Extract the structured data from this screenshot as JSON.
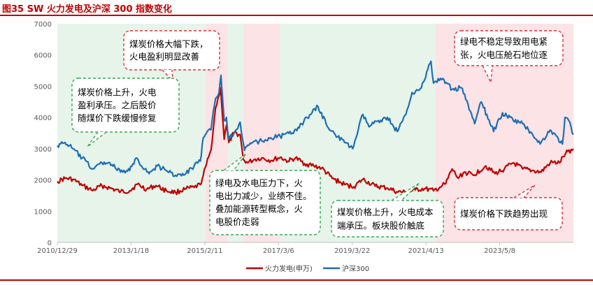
{
  "title": "图35  SW 火力发电及沪深 300 指数变化",
  "colors": {
    "title": "#c00000",
    "thermal": "#c00000",
    "csi300": "#1f6eb4",
    "green_band": "#e6f4ea",
    "pink_band": "#fbe3e6",
    "green_box": "#3aa655",
    "red_box": "#e0303a"
  },
  "chart_data": {
    "type": "line",
    "title": "",
    "xlabel": "",
    "ylabel": "",
    "ylim": [
      0,
      7000
    ],
    "yticks": [
      "0",
      "1000",
      "2000",
      "3000",
      "4000",
      "5000",
      "6000",
      "7000"
    ],
    "xticks": [
      "2010/12/29",
      "2013/1/18",
      "2015/2/11",
      "2017/3/6",
      "2019/3/22",
      "2021/4/13",
      "2023/5/8"
    ],
    "xrange": [
      "2010-12-29",
      "2024-12-31"
    ],
    "grid": false,
    "legend_position": "bottom",
    "series": [
      {
        "name": "火力发电(申万)",
        "color": "#c00000",
        "points": [
          [
            "2010-12-29",
            1950
          ],
          [
            "2011-03-15",
            2050
          ],
          [
            "2011-06-01",
            2020
          ],
          [
            "2011-09-01",
            1820
          ],
          [
            "2011-12-15",
            1660
          ],
          [
            "2012-03-15",
            1820
          ],
          [
            "2012-06-01",
            1740
          ],
          [
            "2012-09-15",
            1620
          ],
          [
            "2012-12-15",
            1650
          ],
          [
            "2013-03-01",
            1860
          ],
          [
            "2013-06-01",
            1700
          ],
          [
            "2013-09-01",
            1820
          ],
          [
            "2013-12-15",
            1650
          ],
          [
            "2014-03-15",
            1600
          ],
          [
            "2014-06-15",
            1700
          ],
          [
            "2014-09-15",
            1760
          ],
          [
            "2014-11-15",
            1850
          ],
          [
            "2014-12-15",
            2150
          ],
          [
            "2015-01-15",
            2500
          ],
          [
            "2015-03-01",
            2950
          ],
          [
            "2015-04-15",
            4300
          ],
          [
            "2015-05-20",
            4700
          ],
          [
            "2015-06-05",
            4950
          ],
          [
            "2015-06-20",
            4200
          ],
          [
            "2015-07-10",
            3300
          ],
          [
            "2015-08-01",
            3750
          ],
          [
            "2015-08-25",
            3200
          ],
          [
            "2015-10-15",
            3500
          ],
          [
            "2015-12-15",
            3450
          ],
          [
            "2016-01-15",
            2650
          ],
          [
            "2016-03-01",
            2550
          ],
          [
            "2016-05-01",
            2650
          ],
          [
            "2016-07-15",
            2700
          ],
          [
            "2016-10-15",
            2620
          ],
          [
            "2017-01-15",
            2720
          ],
          [
            "2017-04-01",
            2600
          ],
          [
            "2017-06-15",
            2700
          ],
          [
            "2017-09-15",
            2520
          ],
          [
            "2017-12-15",
            2450
          ],
          [
            "2018-03-01",
            2380
          ],
          [
            "2018-06-15",
            2050
          ],
          [
            "2018-10-15",
            1850
          ],
          [
            "2019-01-15",
            1780
          ],
          [
            "2019-04-15",
            2020
          ],
          [
            "2019-08-15",
            1800
          ],
          [
            "2019-12-15",
            1740
          ],
          [
            "2020-03-15",
            1620
          ],
          [
            "2020-06-15",
            1600
          ],
          [
            "2020-09-15",
            1680
          ],
          [
            "2020-12-15",
            1720
          ],
          [
            "2021-03-15",
            1650
          ],
          [
            "2021-05-15",
            1760
          ],
          [
            "2021-07-15",
            1880
          ],
          [
            "2021-09-15",
            2350
          ],
          [
            "2021-11-15",
            2050
          ],
          [
            "2022-01-15",
            2250
          ],
          [
            "2022-04-15",
            2150
          ],
          [
            "2022-08-15",
            2450
          ],
          [
            "2022-11-15",
            2200
          ],
          [
            "2023-02-15",
            2350
          ],
          [
            "2023-05-15",
            2550
          ],
          [
            "2023-08-15",
            2350
          ],
          [
            "2023-11-15",
            2300
          ],
          [
            "2024-02-15",
            2250
          ],
          [
            "2024-05-15",
            2550
          ],
          [
            "2024-08-15",
            2550
          ],
          [
            "2024-10-15",
            2850
          ],
          [
            "2024-12-31",
            3000
          ]
        ]
      },
      {
        "name": "沪深300",
        "color": "#1f6eb4",
        "points": [
          [
            "2010-12-29",
            3100
          ],
          [
            "2011-03-15",
            3200
          ],
          [
            "2011-06-01",
            3000
          ],
          [
            "2011-09-01",
            2700
          ],
          [
            "2011-12-15",
            2350
          ],
          [
            "2012-03-15",
            2550
          ],
          [
            "2012-06-01",
            2550
          ],
          [
            "2012-09-15",
            2250
          ],
          [
            "2012-12-15",
            2300
          ],
          [
            "2013-02-15",
            2700
          ],
          [
            "2013-06-25",
            2200
          ],
          [
            "2013-09-15",
            2450
          ],
          [
            "2013-12-15",
            2300
          ],
          [
            "2014-03-15",
            2150
          ],
          [
            "2014-06-15",
            2170
          ],
          [
            "2014-09-15",
            2450
          ],
          [
            "2014-11-15",
            2600
          ],
          [
            "2014-12-15",
            3350
          ],
          [
            "2015-01-15",
            3500
          ],
          [
            "2015-03-01",
            3600
          ],
          [
            "2015-04-15",
            4600
          ],
          [
            "2015-05-20",
            4800
          ],
          [
            "2015-06-08",
            5350
          ],
          [
            "2015-06-20",
            4800
          ],
          [
            "2015-07-10",
            3900
          ],
          [
            "2015-08-01",
            4000
          ],
          [
            "2015-08-25",
            3300
          ],
          [
            "2015-10-15",
            3500
          ],
          [
            "2015-12-15",
            3850
          ],
          [
            "2016-01-28",
            2950
          ],
          [
            "2016-04-15",
            3200
          ],
          [
            "2016-07-15",
            3250
          ],
          [
            "2016-10-15",
            3350
          ],
          [
            "2017-01-15",
            3400
          ],
          [
            "2017-05-15",
            3500
          ],
          [
            "2017-08-15",
            3800
          ],
          [
            "2017-11-15",
            4100
          ],
          [
            "2018-01-25",
            4350
          ],
          [
            "2018-04-15",
            3800
          ],
          [
            "2018-07-15",
            3450
          ],
          [
            "2018-10-15",
            3200
          ],
          [
            "2019-01-03",
            3000
          ],
          [
            "2019-04-15",
            4100
          ],
          [
            "2019-06-15",
            3700
          ],
          [
            "2019-09-15",
            3900
          ],
          [
            "2019-12-15",
            4000
          ],
          [
            "2020-03-20",
            3550
          ],
          [
            "2020-06-15",
            4100
          ],
          [
            "2020-08-15",
            4800
          ],
          [
            "2020-11-15",
            4950
          ],
          [
            "2021-02-18",
            5800
          ],
          [
            "2021-03-15",
            5100
          ],
          [
            "2021-06-15",
            5250
          ],
          [
            "2021-09-15",
            4900
          ],
          [
            "2021-12-15",
            4950
          ],
          [
            "2022-03-15",
            4200
          ],
          [
            "2022-04-27",
            3800
          ],
          [
            "2022-07-01",
            4500
          ],
          [
            "2022-10-31",
            3550
          ],
          [
            "2023-01-28",
            4150
          ],
          [
            "2023-05-15",
            3900
          ],
          [
            "2023-08-15",
            3800
          ],
          [
            "2023-11-15",
            3500
          ],
          [
            "2024-02-05",
            3150
          ],
          [
            "2024-05-15",
            3600
          ],
          [
            "2024-09-13",
            3150
          ],
          [
            "2024-10-08",
            4000
          ],
          [
            "2024-11-15",
            3900
          ],
          [
            "2024-12-31",
            3450
          ]
        ]
      }
    ],
    "bands": [
      {
        "type": "green",
        "from": "2010-12-29",
        "to": "2015-01-01"
      },
      {
        "type": "pink",
        "from": "2015-01-01",
        "to": "2015-08-15"
      },
      {
        "type": "green",
        "from": "2015-08-15",
        "to": "2016-01-15"
      },
      {
        "type": "pink",
        "from": "2016-01-15",
        "to": "2017-01-15"
      },
      {
        "type": "green",
        "from": "2017-01-15",
        "to": "2021-04-01"
      },
      {
        "type": "pink",
        "from": "2021-04-01",
        "to": "2024-12-31"
      }
    ],
    "annotations": [
      {
        "box": "red",
        "lines": [
          "煤炭价格大幅下跌，",
          "火电盈利明显改善"
        ]
      },
      {
        "box": "green",
        "lines": [
          "煤炭价格上升，火电",
          "盈利承压。之后股价",
          "随煤价下跌缓慢修复"
        ]
      },
      {
        "box": "green",
        "lines": [
          "绿电及水电压力下，火",
          "电出力减少，业绩不佳。",
          "叠加能源转型概念，火",
          "电股价走弱"
        ]
      },
      {
        "box": "green",
        "lines": [
          "煤炭价格上升，火电成本",
          "端承压。板块股价触底"
        ]
      },
      {
        "box": "red",
        "lines": [
          "绿电不稳定导致用电紧",
          "张，火电压舱石地位逐"
        ]
      },
      {
        "box": "red",
        "lines": [
          "煤炭价格下跌趋势出现"
        ]
      }
    ]
  }
}
